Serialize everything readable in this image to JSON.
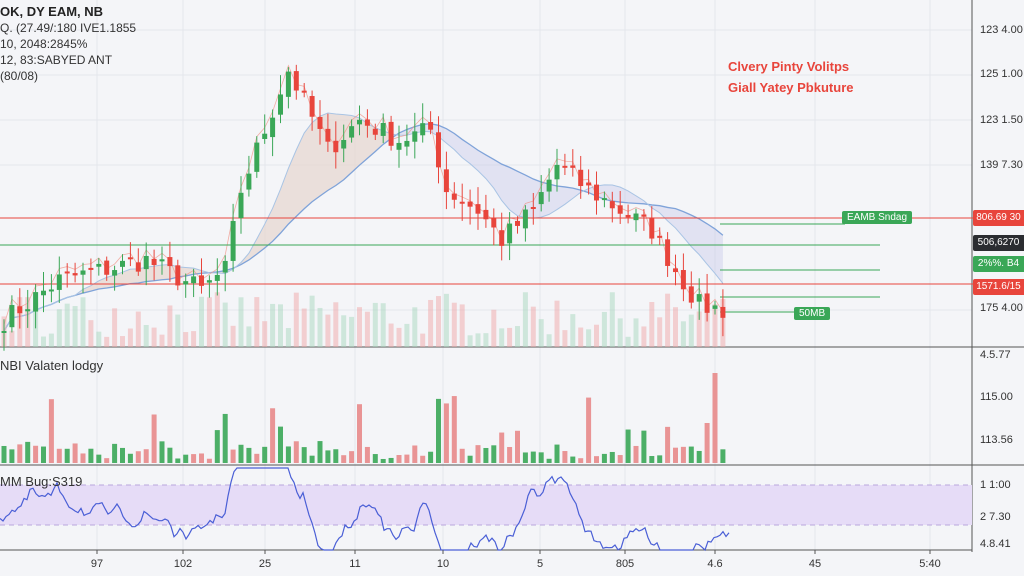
{
  "legend": {
    "title": "OK, DY EAM, NB",
    "lines": [
      "Q. (27.49/:180 IVE1.1855",
      "10, 2048:2845%",
      "12, 83:SABYED ANT",
      "(80/08)"
    ]
  },
  "annotation": {
    "line1": "Clvery Pinty Volitps",
    "line2": "Giall Yatey Pbkuture"
  },
  "volume_pane_title": "NBI Valaten lodgy",
  "rsi_pane_title": "MM Bug:S319",
  "tags": {
    "green_top": "EAMB Sndag",
    "green_bottom": "50MB"
  },
  "price_tags": [
    {
      "text": "806.69 30",
      "color": "#e8453c"
    },
    {
      "text": "506,6270",
      "color": "#2b2d31"
    },
    {
      "text": "2%%. B4",
      "color": "#3aa757"
    },
    {
      "text": "1571.6/15",
      "color": "#e8453c"
    }
  ],
  "colors": {
    "up": "#3aa757",
    "down": "#e8453c",
    "ma": "#7fa3d9",
    "rsi": "#4a5fd6",
    "rsi_band": "#e6dcf7"
  },
  "chart_data": [
    {
      "type": "candlestick",
      "y_tick_labels": [
        "123 4.00",
        "125 1.00",
        "123 1.50",
        "139 7.30",
        "175 4.00"
      ],
      "x_tick_labels": [
        "97",
        "102",
        "25",
        "11",
        "10",
        "5",
        "805",
        "4.6",
        "45",
        "5:40"
      ],
      "price_path": [
        [
          0,
          27
        ],
        [
          7,
          67
        ],
        [
          18,
          87
        ],
        [
          25,
          57
        ],
        [
          28,
          77
        ],
        [
          30,
          157
        ],
        [
          36,
          277
        ],
        [
          41,
          197
        ],
        [
          45,
          227
        ],
        [
          50,
          207
        ],
        [
          54,
          217
        ],
        [
          56,
          157
        ],
        [
          60,
          137
        ],
        [
          63,
          107
        ],
        [
          67,
          137
        ],
        [
          70,
          182
        ],
        [
          74,
          157
        ],
        [
          78,
          137
        ],
        [
          82,
          117
        ],
        [
          85,
          77
        ],
        [
          88,
          42
        ],
        [
          91,
          37
        ]
      ],
      "grid": true
    },
    {
      "type": "bar",
      "title": "NBI Valaten lodgy",
      "y_tick_labels": [
        "4.5.77",
        "115.00",
        "113.56"
      ]
    },
    {
      "type": "line",
      "title": "MM Bug:S319",
      "y_tick_labels": [
        "1 1:00",
        "2 7.30",
        "4.8.41"
      ]
    }
  ]
}
